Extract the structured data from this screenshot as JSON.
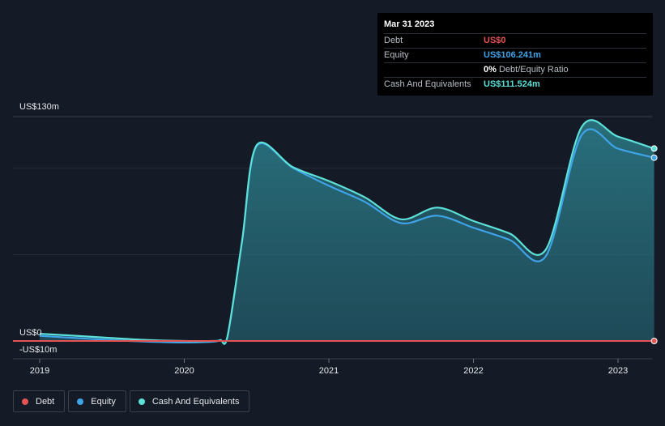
{
  "tooltip": {
    "date": "Mar 31 2023",
    "rows": [
      {
        "label": "Debt",
        "value": "US$0",
        "color": "#e45454"
      },
      {
        "label": "Equity",
        "value": "US$106.241m",
        "color": "#3fa3e8"
      },
      {
        "label": "",
        "value": "0%",
        "sub": "Debt/Equity Ratio",
        "color": "#ffffff"
      },
      {
        "label": "Cash And Equivalents",
        "value": "US$111.524m",
        "color": "#5ce0d8"
      }
    ]
  },
  "legend": [
    {
      "label": "Debt",
      "color": "#e45454"
    },
    {
      "label": "Equity",
      "color": "#3fa3e8"
    },
    {
      "label": "Cash And Equivalents",
      "color": "#5ce0d8"
    }
  ],
  "chart_data": {
    "type": "area",
    "title": "",
    "xlabel": "",
    "ylabel": "",
    "y_unit": "US$m",
    "ylim": [
      -10,
      130
    ],
    "x_range": [
      2018.97,
      2023.25
    ],
    "x_tick_labels": [
      "2019",
      "2020",
      "2021",
      "2022",
      "2023"
    ],
    "x_tick_values": [
      2019,
      2020,
      2021,
      2022,
      2023
    ],
    "y_axis_labels": [
      {
        "value": 130,
        "label": "US$130m"
      },
      {
        "value": 0,
        "label": "US$0"
      },
      {
        "value": -10,
        "label": "-US$10m"
      }
    ],
    "series": [
      {
        "name": "Cash And Equivalents",
        "color": "#5ce0d8",
        "x": [
          2019.0,
          2019.25,
          2019.5,
          2019.75,
          2020.0,
          2020.2,
          2020.25,
          2020.3,
          2020.4,
          2020.5,
          2020.75,
          2021.0,
          2021.25,
          2021.5,
          2021.75,
          2022.0,
          2022.25,
          2022.5,
          2022.75,
          2023.0,
          2023.25
        ],
        "values": [
          4.2,
          3.0,
          1.7,
          0.5,
          0.0,
          0.0,
          0.5,
          3.0,
          58,
          113.4,
          100.8,
          92.7,
          83.2,
          70.5,
          77.3,
          69.5,
          62.3,
          52.9,
          124.2,
          118.4,
          111.5
        ]
      },
      {
        "name": "Equity",
        "color": "#3fa3e8",
        "x": [
          2019.0,
          2019.25,
          2019.5,
          2019.75,
          2020.0,
          2020.2,
          2020.25,
          2020.3,
          2020.4,
          2020.5,
          2020.75,
          2021.0,
          2021.25,
          2021.5,
          2021.75,
          2022.0,
          2022.25,
          2022.5,
          2022.75,
          2023.0,
          2023.25
        ],
        "values": [
          3.0,
          1.7,
          0.5,
          -0.4,
          -0.9,
          -0.4,
          0.5,
          3.0,
          58,
          113.0,
          100.4,
          89.9,
          80.6,
          68.3,
          72.6,
          65.6,
          58.6,
          49.1,
          119.5,
          111.4,
          106.2
        ]
      },
      {
        "name": "Debt",
        "color": "#e45454",
        "x": [
          2019.0,
          2023.25
        ],
        "values": [
          0,
          0
        ]
      }
    ]
  }
}
